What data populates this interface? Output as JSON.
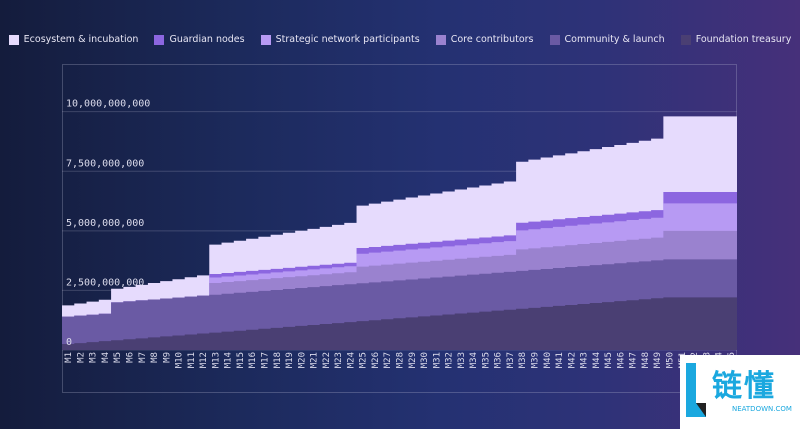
{
  "legend": {
    "items": [
      {
        "label": "Ecosystem & incubation",
        "color": "#e6dbfd"
      },
      {
        "label": "Guardian nodes",
        "color": "#8c66e0"
      },
      {
        "label": "Strategic network participants",
        "color": "#b79af3"
      },
      {
        "label": "Core contributors",
        "color": "#9a82cf"
      },
      {
        "label": "Community & launch",
        "color": "#6a5aa4"
      },
      {
        "label": "Foundation treasury",
        "color": "#4a3f73"
      }
    ]
  },
  "chart_data": {
    "type": "area",
    "stacked": true,
    "step": true,
    "categories": [
      "M1",
      "M2",
      "M3",
      "M4",
      "M5",
      "M6",
      "M7",
      "M8",
      "M9",
      "M10",
      "M11",
      "M12",
      "M13",
      "M14",
      "M15",
      "M16",
      "M17",
      "M18",
      "M19",
      "M20",
      "M21",
      "M22",
      "M23",
      "M24",
      "M25",
      "M26",
      "M27",
      "M28",
      "M29",
      "M30",
      "M31",
      "M32",
      "M33",
      "M34",
      "M35",
      "M36",
      "M37",
      "M38",
      "M39",
      "M40",
      "M41",
      "M42",
      "M43",
      "M44",
      "M45",
      "M46",
      "M47",
      "M48",
      "M49",
      "M50",
      "M51",
      "M52",
      "M53",
      "M54",
      "M55"
    ],
    "ylim": [
      0,
      12000000000
    ],
    "yticks": [
      0,
      2500000000,
      5000000000,
      7500000000,
      10000000000
    ],
    "ytick_labels": [
      "0",
      "2,500,000,000",
      "5,000,000,000",
      "7,500,000,000",
      "10,000,000,000"
    ],
    "grid": true,
    "legend_position": "top",
    "series": [
      {
        "name": "Foundation treasury",
        "color": "#4a3f73",
        "values": [
          250000000,
          290000000,
          330000000,
          370000000,
          410000000,
          450000000,
          490000000,
          530000000,
          570000000,
          610000000,
          650000000,
          690000000,
          730000000,
          770000000,
          810000000,
          850000000,
          890000000,
          930000000,
          970000000,
          1010000000,
          1050000000,
          1090000000,
          1130000000,
          1170000000,
          1210000000,
          1250000000,
          1290000000,
          1330000000,
          1370000000,
          1410000000,
          1450000000,
          1490000000,
          1530000000,
          1570000000,
          1610000000,
          1650000000,
          1690000000,
          1730000000,
          1770000000,
          1810000000,
          1850000000,
          1890000000,
          1930000000,
          1970000000,
          2010000000,
          2050000000,
          2090000000,
          2130000000,
          2170000000,
          2210000000,
          2210000000,
          2210000000,
          2210000000,
          2210000000,
          2210000000
        ]
      },
      {
        "name": "Community & launch",
        "color": "#6a5aa4",
        "values": [
          1150000000,
          1150000000,
          1150000000,
          1150000000,
          1590000000,
          1590000000,
          1590000000,
          1590000000,
          1590000000,
          1590000000,
          1590000000,
          1590000000,
          1590000000,
          1590000000,
          1590000000,
          1590000000,
          1590000000,
          1590000000,
          1590000000,
          1590000000,
          1590000000,
          1590000000,
          1590000000,
          1590000000,
          1590000000,
          1590000000,
          1590000000,
          1590000000,
          1590000000,
          1590000000,
          1590000000,
          1590000000,
          1590000000,
          1590000000,
          1590000000,
          1590000000,
          1590000000,
          1590000000,
          1590000000,
          1590000000,
          1590000000,
          1590000000,
          1590000000,
          1590000000,
          1590000000,
          1590000000,
          1590000000,
          1590000000,
          1590000000,
          1590000000,
          1590000000,
          1590000000,
          1590000000,
          1590000000,
          1590000000
        ]
      },
      {
        "name": "Core contributors",
        "color": "#9a82cf",
        "values": [
          0,
          0,
          0,
          0,
          0,
          0,
          0,
          0,
          0,
          0,
          0,
          0,
          490000000,
          491000000,
          492000000,
          493000000,
          494000000,
          495000000,
          496000000,
          497000000,
          498000000,
          499000000,
          500000000,
          501000000,
          700000000,
          701000000,
          702000000,
          703000000,
          704000000,
          705000000,
          706000000,
          707000000,
          708000000,
          709000000,
          710000000,
          711000000,
          712000000,
          900000000,
          905000000,
          910000000,
          915000000,
          920000000,
          925000000,
          930000000,
          935000000,
          940000000,
          945000000,
          950000000,
          955000000,
          1200000000,
          1200000000,
          1200000000,
          1200000000,
          1200000000,
          1200000000
        ]
      },
      {
        "name": "Strategic network participants",
        "color": "#b79af3",
        "values": [
          0,
          0,
          0,
          0,
          0,
          0,
          0,
          0,
          0,
          0,
          0,
          0,
          230000000,
          232000000,
          234000000,
          236000000,
          238000000,
          240000000,
          242000000,
          244000000,
          246000000,
          248000000,
          250000000,
          252000000,
          540000000,
          543000000,
          546000000,
          549000000,
          552000000,
          555000000,
          558000000,
          561000000,
          564000000,
          567000000,
          570000000,
          573000000,
          576000000,
          800000000,
          803000000,
          806000000,
          809000000,
          812000000,
          815000000,
          818000000,
          821000000,
          824000000,
          827000000,
          830000000,
          833000000,
          1150000000,
          1150000000,
          1150000000,
          1150000000,
          1150000000,
          1150000000
        ]
      },
      {
        "name": "Guardian nodes",
        "color": "#8c66e0",
        "values": [
          0,
          0,
          0,
          0,
          0,
          0,
          0,
          0,
          0,
          0,
          0,
          0,
          150000000,
          150000000,
          150000000,
          150000000,
          150000000,
          150000000,
          150000000,
          150000000,
          150000000,
          150000000,
          150000000,
          150000000,
          240000000,
          240000000,
          240000000,
          240000000,
          240000000,
          240000000,
          240000000,
          240000000,
          240000000,
          240000000,
          240000000,
          240000000,
          240000000,
          320000000,
          320000000,
          320000000,
          320000000,
          320000000,
          320000000,
          320000000,
          320000000,
          320000000,
          320000000,
          320000000,
          320000000,
          480000000,
          480000000,
          480000000,
          480000000,
          480000000,
          480000000
        ]
      },
      {
        "name": "Ecosystem & incubation",
        "color": "#e6dbfd",
        "values": [
          470000000,
          510000000,
          550000000,
          590000000,
          570000000,
          610000000,
          650000000,
          690000000,
          730000000,
          770000000,
          810000000,
          850000000,
          1230000000,
          1270000000,
          1310000000,
          1350000000,
          1390000000,
          1430000000,
          1470000000,
          1510000000,
          1550000000,
          1590000000,
          1630000000,
          1670000000,
          1780000000,
          1820000000,
          1860000000,
          1900000000,
          1940000000,
          1980000000,
          2020000000,
          2060000000,
          2100000000,
          2140000000,
          2180000000,
          2220000000,
          2260000000,
          2560000000,
          2600000000,
          2640000000,
          2680000000,
          2720000000,
          2760000000,
          2800000000,
          2840000000,
          2880000000,
          2920000000,
          2960000000,
          3000000000,
          3170000000,
          3170000000,
          3170000000,
          3170000000,
          3170000000,
          3170000000
        ]
      }
    ]
  },
  "watermark": {
    "cn": "链懂",
    "en": "NEATDOWN.COM"
  }
}
